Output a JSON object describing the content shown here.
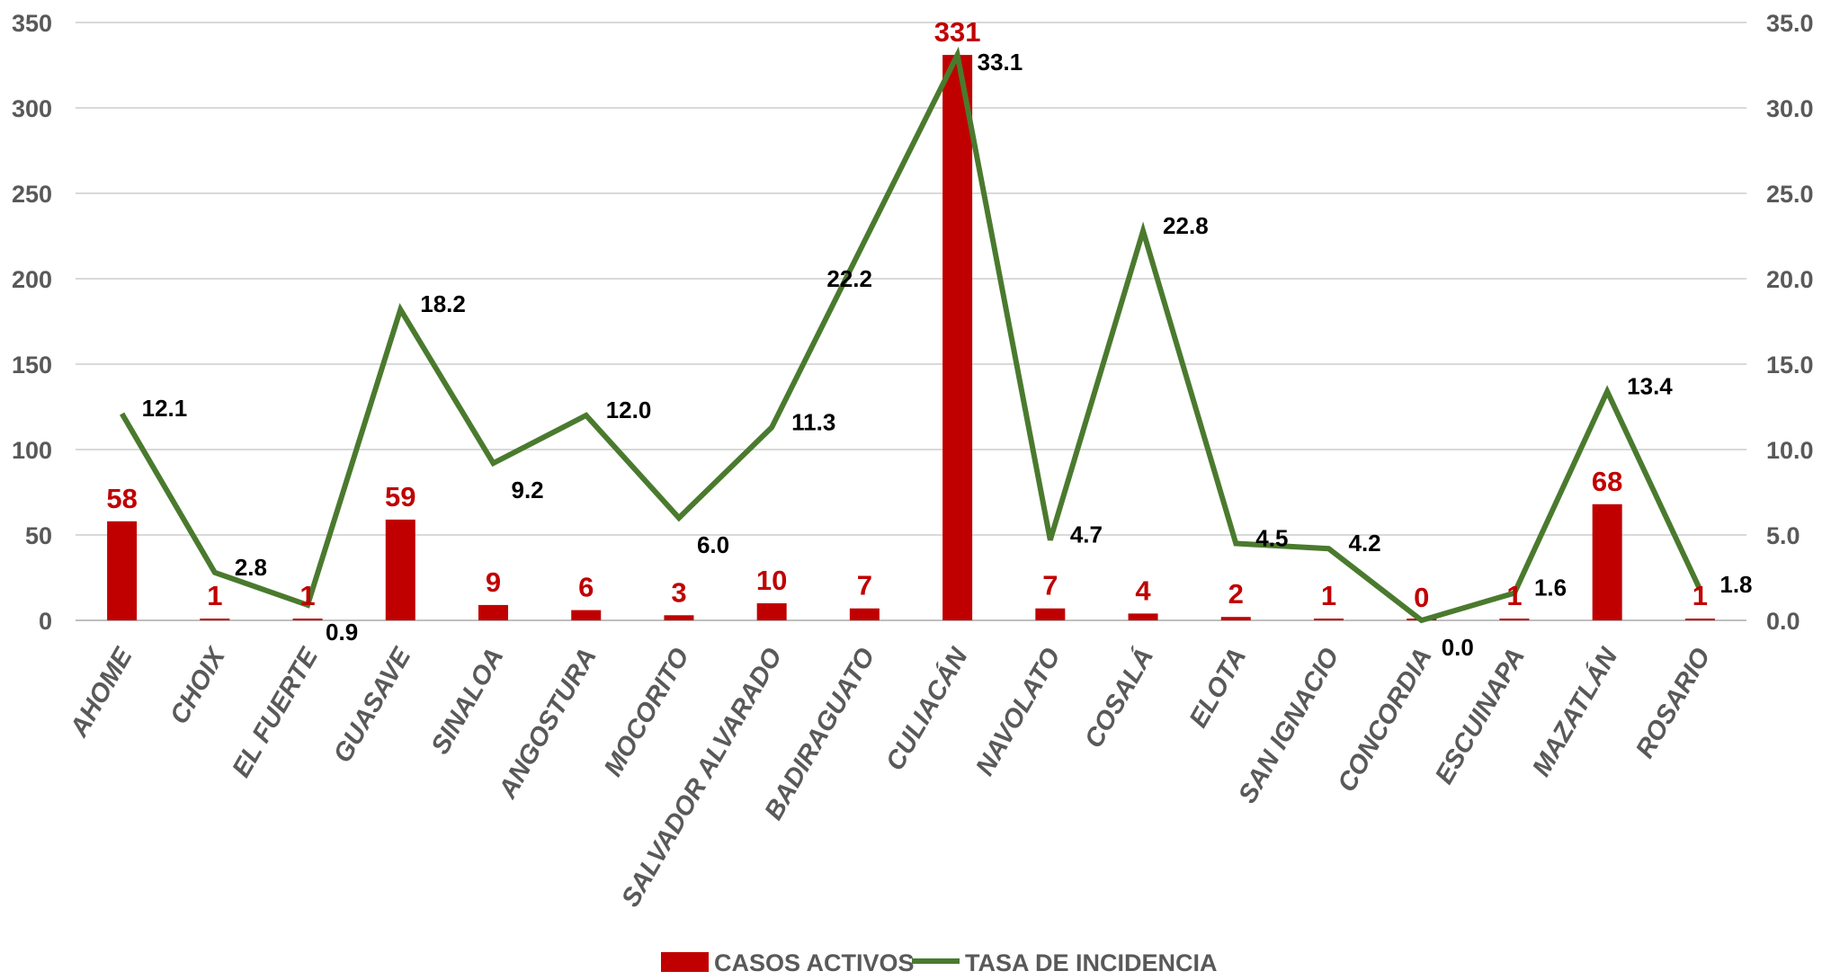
{
  "chart_data": {
    "type": "bar",
    "categories": [
      "AHOME",
      "CHOIX",
      "EL FUERTE",
      "GUASAVE",
      "SINALOA",
      "ANGOSTURA",
      "MOCORITO",
      "SALVADOR ALVARADO",
      "BADIRAGUATO",
      "CULIACÁN",
      "NAVOLATO",
      "COSALÁ",
      "ELOTA",
      "SAN IGNACIO",
      "CONCORDIA",
      "ESCUINAPA",
      "MAZATLÁN",
      "ROSARIO"
    ],
    "series": [
      {
        "name": "CASOS ACTIVOS",
        "type": "bar",
        "axis": "left",
        "values": [
          58,
          1,
          1,
          59,
          9,
          6,
          3,
          10,
          7,
          331,
          7,
          4,
          2,
          1,
          0,
          1,
          68,
          1
        ],
        "value_labels": [
          "58",
          "1",
          "1",
          "59",
          "9",
          "6",
          "3",
          "10",
          "7",
          "331",
          "7",
          "4",
          "2",
          "1",
          "0",
          "1",
          "68",
          "1"
        ]
      },
      {
        "name": "TASA DE INCIDENCIA",
        "type": "line",
        "axis": "right",
        "values": [
          12.1,
          2.8,
          0.9,
          18.2,
          9.2,
          12.0,
          6.0,
          11.3,
          22.2,
          33.1,
          4.7,
          22.8,
          4.5,
          4.2,
          0.0,
          1.6,
          13.4,
          1.8
        ],
        "value_labels": [
          "12.1",
          "2.8",
          "0.9",
          "18.2",
          "9.2",
          "12.0",
          "6.0",
          "11.3",
          "22.2",
          "33.1",
          "4.7",
          "22.8",
          "4.5",
          "4.2",
          "0.0",
          "1.6",
          "13.4",
          "1.8"
        ]
      }
    ],
    "y_left": {
      "ylim": [
        0,
        350
      ],
      "ticks": [
        "0",
        "50",
        "100",
        "150",
        "200",
        "250",
        "300",
        "350"
      ]
    },
    "y_right": {
      "ylim": [
        0,
        35
      ],
      "ticks": [
        "0.0",
        "5.0",
        "10.0",
        "15.0",
        "20.0",
        "25.0",
        "30.0",
        "35.0"
      ]
    },
    "grid": true,
    "legend_position": "bottom",
    "colors": {
      "bar": "#c00000",
      "line": "#4a7a2e",
      "grid": "#d9d9d9",
      "axis_text": "#595959",
      "bar_label": "#c00000",
      "line_label": "#000000"
    }
  }
}
